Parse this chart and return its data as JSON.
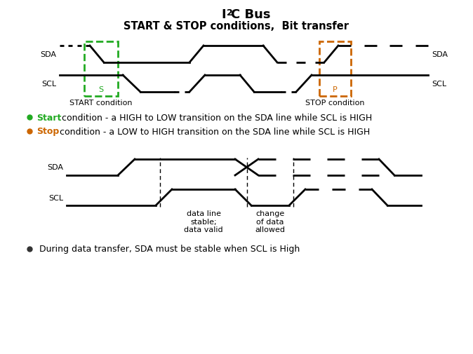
{
  "title_I": "I",
  "title_2": "2",
  "title_C": "C Bus",
  "subtitle": "START & STOP conditions,  Bit transfer",
  "bg_color": "#ffffff",
  "signal_color": "#000000",
  "green_color": "#22aa22",
  "orange_color": "#cc6600",
  "bullet_color": "#555555",
  "line_width": 2.0,
  "bullet1_colored": "Start",
  "bullet1_rest": " condition - a HIGH to LOW transition on the SDA line while SCL is HIGH",
  "bullet2_colored": "Stop",
  "bullet2_rest": " condition - a LOW to HIGH transition on the SDA line while SCL is HIGH",
  "bullet3": " During data transfer, SDA must be stable when SCL is High",
  "label_start": "START condition",
  "label_stop": "STOP condition",
  "label_data_stable": "data line\nstable;\ndata valid",
  "label_change": "change\nof data\nallowed"
}
